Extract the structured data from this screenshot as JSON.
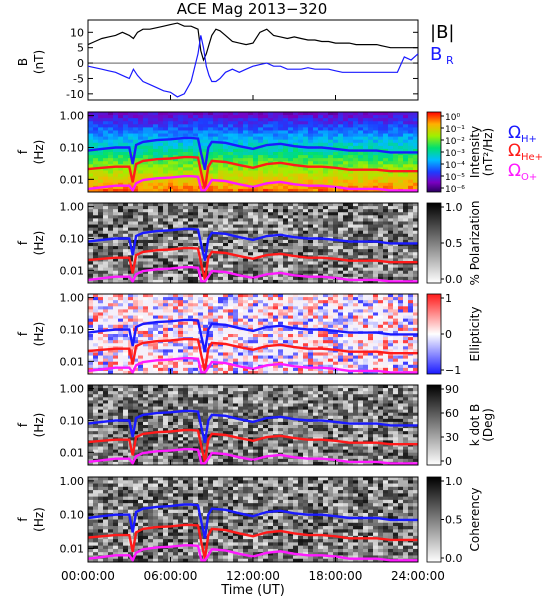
{
  "chart_data": {
    "title": "ACE Mag 2013−320",
    "xlabel": "Time (UT)",
    "x_ticks": [
      "00:00:00",
      "06:00:00",
      "12:00:00",
      "18:00:00",
      "24:00:00"
    ],
    "x_range_hours": [
      0,
      24
    ],
    "panels": [
      {
        "type": "line",
        "ylabel": "B",
        "yunit": "(nT)",
        "ylim": [
          -12,
          14
        ],
        "y_ticks": [
          "10",
          "5",
          "0",
          "-5",
          "-10"
        ],
        "legend": [
          {
            "label": "|B|",
            "color": "#000000"
          },
          {
            "label": "B",
            "sub": "R",
            "color": "#1a1aff"
          }
        ],
        "series": [
          {
            "name": "|B|",
            "color": "#000000",
            "x": [
              0,
              0.5,
              1,
              1.5,
              2,
              2.5,
              3,
              3.3,
              3.6,
              4,
              4.5,
              5,
              5.5,
              6,
              6.5,
              7,
              7.5,
              8,
              8.2,
              8.4,
              8.6,
              8.8,
              9,
              9.3,
              9.6,
              10,
              10.5,
              11,
              11.5,
              12,
              12.5,
              13,
              13.5,
              14,
              14.5,
              15,
              15.5,
              16,
              16.5,
              17,
              17.5,
              18,
              18.5,
              19,
              19.5,
              20,
              20.5,
              21,
              21.5,
              22,
              22.5,
              23,
              23.5,
              24
            ],
            "values": [
              6,
              7,
              8,
              8.5,
              9,
              10,
              9,
              8,
              10,
              11,
              11,
              11.5,
              12,
              12.5,
              13,
              12,
              12,
              11,
              4,
              1,
              3,
              6,
              9,
              11,
              10.5,
              9,
              7,
              6.5,
              6,
              6.5,
              10,
              11,
              9,
              8.5,
              8,
              8.5,
              8,
              7.5,
              7.5,
              7,
              7,
              6.5,
              6.5,
              6.5,
              6,
              6,
              6,
              6,
              5.5,
              5,
              5,
              5,
              5,
              5
            ]
          },
          {
            "name": "B_R",
            "color": "#1a1aff",
            "x": [
              0,
              0.5,
              1,
              1.5,
              2,
              2.5,
              3,
              3.3,
              3.6,
              4,
              4.5,
              5,
              5.5,
              6,
              6.5,
              7,
              7.5,
              8,
              8.2,
              8.4,
              8.6,
              8.8,
              9,
              9.3,
              9.6,
              10,
              10.5,
              11,
              11.5,
              12,
              12.5,
              13,
              13.5,
              14,
              14.5,
              15,
              15.5,
              16,
              16.5,
              17,
              17.5,
              18,
              18.5,
              19,
              19.5,
              20,
              20.5,
              21,
              21.5,
              22,
              22.5,
              23,
              23.5,
              24
            ],
            "values": [
              -1,
              -1.5,
              -2,
              -2.5,
              -3,
              -4,
              -5,
              -2,
              -4,
              -6,
              -7,
              -8,
              -9,
              -9.5,
              -11,
              -10,
              -6,
              3,
              9,
              5,
              -1,
              -4,
              -6,
              -6,
              -5,
              -3,
              -2,
              -3,
              -2,
              -1,
              -0.5,
              0,
              -1,
              -1,
              -2,
              -2,
              -2,
              -1.5,
              -2,
              -2,
              -2,
              -2.5,
              -3,
              -3,
              -3,
              -3,
              -3,
              -3,
              -3,
              -3,
              -3,
              2,
              1,
              3
            ]
          }
        ]
      },
      {
        "type": "heatmap",
        "ylabel": "f",
        "yunit": "(Hz)",
        "y_scale": "log",
        "ylim_hz": [
          0.004,
          1.3
        ],
        "y_ticks": [
          "1.00",
          "0.10",
          "0.01"
        ],
        "colorbar": {
          "label": "Intensity",
          "unit": "(nT²/Hz)",
          "scale": "log",
          "ticks": [
            "10⁰",
            "10⁻¹",
            "10⁻²",
            "10⁻³",
            "10⁻⁴",
            "10⁻⁵",
            "10⁻⁶"
          ]
        },
        "gyro_legend": [
          {
            "label": "Ω",
            "sub": "H+",
            "color": "#1a1aff"
          },
          {
            "label": "Ω",
            "sub": "He+",
            "color": "#ff1a1a"
          },
          {
            "label": "Ω",
            "sub": "O+",
            "color": "#ff1aff"
          }
        ]
      },
      {
        "type": "heatmap",
        "ylabel": "f",
        "yunit": "(Hz)",
        "y_scale": "log",
        "y_ticks": [
          "1.00",
          "0.10",
          "0.01"
        ],
        "colorbar": {
          "label": "% Polarization",
          "ticks": [
            "1.0",
            "0.5",
            "0.0"
          ]
        }
      },
      {
        "type": "heatmap",
        "ylabel": "f",
        "yunit": "(Hz)",
        "y_scale": "log",
        "y_ticks": [
          "1.00",
          "0.10",
          "0.01"
        ],
        "colorbar": {
          "label": "Ellipticity",
          "ticks": [
            "1",
            "0",
            "−1"
          ]
        }
      },
      {
        "type": "heatmap",
        "ylabel": "f",
        "yunit": "(Hz)",
        "y_scale": "log",
        "y_ticks": [
          "1.00",
          "0.10",
          "0.01"
        ],
        "colorbar": {
          "label": "k dot B",
          "unit": "(Deg)",
          "ticks": [
            "90",
            "60",
            "30",
            "0"
          ]
        }
      },
      {
        "type": "heatmap",
        "ylabel": "f",
        "yunit": "(Hz)",
        "y_scale": "log",
        "y_ticks": [
          "1.00",
          "0.10",
          "0.01"
        ],
        "colorbar": {
          "label": "Coherency",
          "ticks": [
            "1.0",
            "0.5",
            "0.0"
          ]
        }
      }
    ],
    "gyrofrequency_curves": {
      "x": [
        0,
        1,
        2,
        3,
        3.25,
        3.5,
        4,
        5,
        6,
        7,
        7.5,
        8,
        8.25,
        8.5,
        8.75,
        9,
        10,
        11,
        12,
        13,
        14,
        15,
        16,
        17,
        18,
        19,
        20,
        21,
        22,
        23,
        24
      ],
      "H+": [
        0.08,
        0.09,
        0.1,
        0.1,
        0.03,
        0.12,
        0.15,
        0.17,
        0.18,
        0.2,
        0.2,
        0.19,
        0.06,
        0.02,
        0.1,
        0.15,
        0.14,
        0.11,
        0.09,
        0.12,
        0.13,
        0.11,
        0.1,
        0.1,
        0.09,
        0.08,
        0.08,
        0.08,
        0.07,
        0.07,
        0.07
      ],
      "He+": [
        0.021,
        0.023,
        0.025,
        0.025,
        0.008,
        0.03,
        0.038,
        0.043,
        0.045,
        0.05,
        0.05,
        0.048,
        0.015,
        0.005,
        0.025,
        0.038,
        0.035,
        0.028,
        0.023,
        0.03,
        0.033,
        0.028,
        0.025,
        0.025,
        0.023,
        0.02,
        0.02,
        0.02,
        0.018,
        0.018,
        0.018
      ],
      "O+": [
        0.005,
        0.0056,
        0.0063,
        0.0063,
        0.0045,
        0.0075,
        0.0095,
        0.0108,
        0.0113,
        0.0125,
        0.0125,
        0.012,
        0.0045,
        0.0045,
        0.0063,
        0.0095,
        0.0088,
        0.007,
        0.0058,
        0.0075,
        0.0083,
        0.007,
        0.0063,
        0.0063,
        0.0058,
        0.005,
        0.005,
        0.005,
        0.0045,
        0.0045,
        0.0045
      ]
    }
  }
}
